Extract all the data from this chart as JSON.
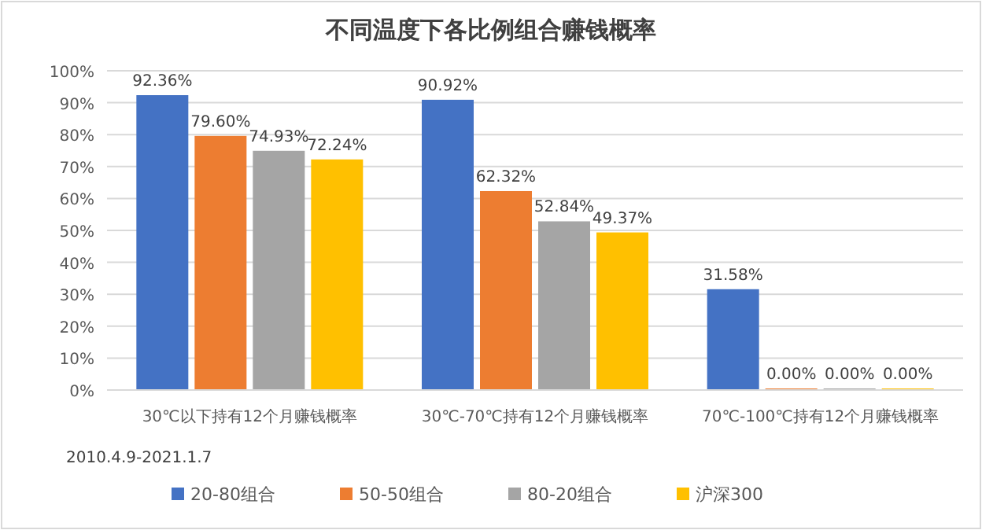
{
  "chart_data": {
    "type": "bar",
    "title": "不同温度下各比例组合赚钱概率",
    "categories": [
      "30℃以下持有12个月赚钱概率",
      "30℃-70℃持有12个月赚钱概率",
      "70℃-100℃持有12个月赚钱概率"
    ],
    "series": [
      {
        "name": "20-80组合",
        "color": "#4472c4",
        "values": [
          92.36,
          90.92,
          31.58
        ],
        "value_labels": [
          "92.36%",
          "90.92%",
          "31.58%"
        ]
      },
      {
        "name": "50-50组合",
        "color": "#ed7d31",
        "values": [
          79.6,
          62.32,
          0
        ],
        "value_labels": [
          "79.60%",
          "62.32%",
          "0.00%"
        ]
      },
      {
        "name": "80-20组合",
        "color": "#a5a5a5",
        "values": [
          74.93,
          52.84,
          0
        ],
        "value_labels": [
          "74.93%",
          "52.84%",
          "0.00%"
        ]
      },
      {
        "name": "沪深300",
        "color": "#ffc000",
        "values": [
          72.24,
          49.37,
          0
        ],
        "value_labels": [
          "72.24%",
          "49.37%",
          "0.00%"
        ]
      }
    ],
    "ylim": [
      0,
      100
    ],
    "yticks": [
      {
        "value": 0,
        "label": "0%"
      },
      {
        "value": 10,
        "label": "10%"
      },
      {
        "value": 20,
        "label": "20%"
      },
      {
        "value": 30,
        "label": "30%"
      },
      {
        "value": 40,
        "label": "40%"
      },
      {
        "value": 50,
        "label": "50%"
      },
      {
        "value": 60,
        "label": "60%"
      },
      {
        "value": 70,
        "label": "70%"
      },
      {
        "value": 80,
        "label": "80%"
      },
      {
        "value": 90,
        "label": "90%"
      },
      {
        "value": 100,
        "label": "100%"
      }
    ],
    "grid": "y",
    "legend": "bottom",
    "annotations": [
      "2010.4.9-2021.1.7"
    ]
  }
}
